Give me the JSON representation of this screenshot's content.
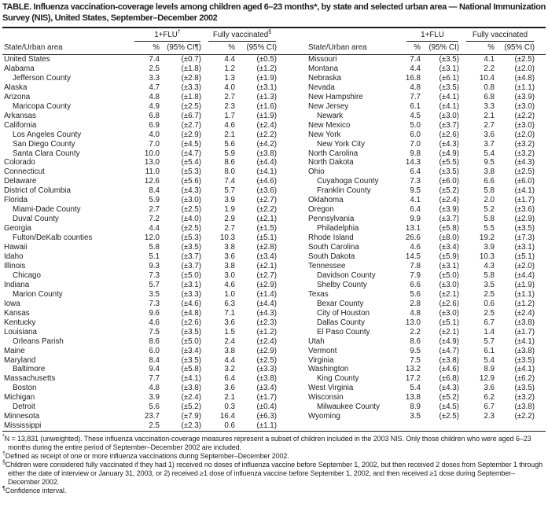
{
  "title": "TABLE. Influenza vaccination-coverage levels among children aged 6–23 months*, by state and selected urban area — National Immunization Survey (NIS), United States, September–December 2002",
  "header": {
    "state_col": "State/Urban area",
    "left_flu_label": "1+FLU",
    "left_flu_marker": "†",
    "left_fv_label": "Fully vaccinated",
    "left_fv_marker": "§",
    "right_flu_label": "1+FLU",
    "right_fv_label": "Fully vaccinated",
    "pct_label": "%",
    "ci_label_marked": "(95% CI¶)",
    "ci_label": "(95% CI)"
  },
  "rows_left": [
    {
      "name": "United States",
      "indent": false,
      "flu": "7.4",
      "flu_ci": "(±0.7)",
      "fv": "4.4",
      "fv_ci": "(±0.5)"
    },
    {
      "name": "Alabama",
      "indent": false,
      "flu": "2.5",
      "flu_ci": "(±1.8)",
      "fv": "1.2",
      "fv_ci": "(±1.2)"
    },
    {
      "name": "Jefferson County",
      "indent": true,
      "flu": "3.3",
      "flu_ci": "(±2.8)",
      "fv": "1.3",
      "fv_ci": "(±1.9)"
    },
    {
      "name": "Alaska",
      "indent": false,
      "flu": "4.7",
      "flu_ci": "(±3.3)",
      "fv": "4.0",
      "fv_ci": "(±3.1)"
    },
    {
      "name": "Arizona",
      "indent": false,
      "flu": "4.8",
      "flu_ci": "(±1.8)",
      "fv": "2.7",
      "fv_ci": "(±1.3)"
    },
    {
      "name": "Maricopa County",
      "indent": true,
      "flu": "4.9",
      "flu_ci": "(±2.5)",
      "fv": "2.3",
      "fv_ci": "(±1.6)"
    },
    {
      "name": "Arkansas",
      "indent": false,
      "flu": "6.8",
      "flu_ci": "(±6.7)",
      "fv": "1.7",
      "fv_ci": "(±1.9)"
    },
    {
      "name": "California",
      "indent": false,
      "flu": "6.9",
      "flu_ci": "(±2.7)",
      "fv": "4.6",
      "fv_ci": "(±2.4)"
    },
    {
      "name": "Los Angeles County",
      "indent": true,
      "flu": "4.0",
      "flu_ci": "(±2.9)",
      "fv": "2.1",
      "fv_ci": "(±2.2)"
    },
    {
      "name": "San Diego County",
      "indent": true,
      "flu": "7.0",
      "flu_ci": "(±4.5)",
      "fv": "5.6",
      "fv_ci": "(±4.2)"
    },
    {
      "name": "Santa Clara County",
      "indent": true,
      "flu": "10.0",
      "flu_ci": "(±4.7)",
      "fv": "5.9",
      "fv_ci": "(±3.8)"
    },
    {
      "name": "Colorado",
      "indent": false,
      "flu": "13.0",
      "flu_ci": "(±5.4)",
      "fv": "8.6",
      "fv_ci": "(±4.4)"
    },
    {
      "name": "Connecticut",
      "indent": false,
      "flu": "11.0",
      "flu_ci": "(±5.3)",
      "fv": "8.0",
      "fv_ci": "(±4.1)"
    },
    {
      "name": "Delaware",
      "indent": false,
      "flu": "12.6",
      "flu_ci": "(±5.6)",
      "fv": "7.4",
      "fv_ci": "(±4.6)"
    },
    {
      "name": "District of Columbia",
      "indent": false,
      "flu": "8.4",
      "flu_ci": "(±4.3)",
      "fv": "5.7",
      "fv_ci": "(±3.6)"
    },
    {
      "name": "Florida",
      "indent": false,
      "flu": "5.9",
      "flu_ci": "(±3.0)",
      "fv": "3.9",
      "fv_ci": "(±2.7)"
    },
    {
      "name": "Miami-Dade County",
      "indent": true,
      "flu": "2.7",
      "flu_ci": "(±2.5)",
      "fv": "1.9",
      "fv_ci": "(±2.2)"
    },
    {
      "name": "Duval County",
      "indent": true,
      "flu": "7.2",
      "flu_ci": "(±4.0)",
      "fv": "2.9",
      "fv_ci": "(±2.1)"
    },
    {
      "name": "Georgia",
      "indent": false,
      "flu": "4.4",
      "flu_ci": "(±2.5)",
      "fv": "2.7",
      "fv_ci": "(±1.5)"
    },
    {
      "name": "Fulton/DeKalb counties",
      "indent": true,
      "flu": "12.0",
      "flu_ci": "(±5.3)",
      "fv": "10.3",
      "fv_ci": "(±5.1)"
    },
    {
      "name": "Hawaii",
      "indent": false,
      "flu": "5.8",
      "flu_ci": "(±3.5)",
      "fv": "3.8",
      "fv_ci": "(±2.8)"
    },
    {
      "name": "Idaho",
      "indent": false,
      "flu": "5.1",
      "flu_ci": "(±3.7)",
      "fv": "3.6",
      "fv_ci": "(±3.4)"
    },
    {
      "name": "Illinois",
      "indent": false,
      "flu": "9.3",
      "flu_ci": "(±3.7)",
      "fv": "3.8",
      "fv_ci": "(±2.1)"
    },
    {
      "name": "Chicago",
      "indent": true,
      "flu": "7.3",
      "flu_ci": "(±5.0)",
      "fv": "3.0",
      "fv_ci": "(±2.7)"
    },
    {
      "name": "Indiana",
      "indent": false,
      "flu": "5.7",
      "flu_ci": "(±3.1)",
      "fv": "4.6",
      "fv_ci": "(±2.9)"
    },
    {
      "name": "Marion County",
      "indent": true,
      "flu": "3.5",
      "flu_ci": "(±3.3)",
      "fv": "1.0",
      "fv_ci": "(±1.4)"
    },
    {
      "name": "Iowa",
      "indent": false,
      "flu": "7.3",
      "flu_ci": "(±4.6)",
      "fv": "6.3",
      "fv_ci": "(±4.4)"
    },
    {
      "name": "Kansas",
      "indent": false,
      "flu": "9.6",
      "flu_ci": "(±4.8)",
      "fv": "7.1",
      "fv_ci": "(±4.3)"
    },
    {
      "name": "Kentucky",
      "indent": false,
      "flu": "4.6",
      "flu_ci": "(±2.6)",
      "fv": "3.6",
      "fv_ci": "(±2.3)"
    },
    {
      "name": "Louisiana",
      "indent": false,
      "flu": "7.5",
      "flu_ci": "(±3.5)",
      "fv": "1.5",
      "fv_ci": "(±1.2)"
    },
    {
      "name": "Orleans Parish",
      "indent": true,
      "flu": "8.6",
      "flu_ci": "(±5.0)",
      "fv": "2.4",
      "fv_ci": "(±2.4)"
    },
    {
      "name": "Maine",
      "indent": false,
      "flu": "6.0",
      "flu_ci": "(±3.4)",
      "fv": "3.8",
      "fv_ci": "(±2.9)"
    },
    {
      "name": "Maryland",
      "indent": false,
      "flu": "8.4",
      "flu_ci": "(±3.5)",
      "fv": "4.4",
      "fv_ci": "(±2.5)"
    },
    {
      "name": "Baltimore",
      "indent": true,
      "flu": "9.4",
      "flu_ci": "(±5.8)",
      "fv": "3.2",
      "fv_ci": "(±3.3)"
    },
    {
      "name": "Massachusetts",
      "indent": false,
      "flu": "7.7",
      "flu_ci": "(±4.1)",
      "fv": "6.4",
      "fv_ci": "(±3.8)"
    },
    {
      "name": "Boston",
      "indent": true,
      "flu": "4.8",
      "flu_ci": "(±3.8)",
      "fv": "3.6",
      "fv_ci": "(±3.4)"
    },
    {
      "name": "Michigan",
      "indent": false,
      "flu": "3.9",
      "flu_ci": "(±2.4)",
      "fv": "2.1",
      "fv_ci": "(±1.7)"
    },
    {
      "name": "Detroit",
      "indent": true,
      "flu": "5.6",
      "flu_ci": "(±5.2)",
      "fv": "0.3",
      "fv_ci": "(±0.4)"
    },
    {
      "name": "Minnesota",
      "indent": false,
      "flu": "23.7",
      "flu_ci": "(±7.9)",
      "fv": "16.4",
      "fv_ci": "(±6.3)"
    },
    {
      "name": "Mississippi",
      "indent": false,
      "flu": "2.5",
      "flu_ci": "(±2.3)",
      "fv": "0.6",
      "fv_ci": "(±1.1)"
    }
  ],
  "rows_right": [
    {
      "name": "Missouri",
      "indent": false,
      "flu": "7.4",
      "flu_ci": "(±3.5)",
      "fv": "4.1",
      "fv_ci": "(±2.5)"
    },
    {
      "name": "Montana",
      "indent": false,
      "flu": "4.4",
      "flu_ci": "(±3.1)",
      "fv": "2.2",
      "fv_ci": "(±2.0)"
    },
    {
      "name": "Nebraska",
      "indent": false,
      "flu": "16.8",
      "flu_ci": "(±6.1)",
      "fv": "10.4",
      "fv_ci": "(±4.8)"
    },
    {
      "name": "Nevada",
      "indent": false,
      "flu": "4.8",
      "flu_ci": "(±3.5)",
      "fv": "0.8",
      "fv_ci": "(±1.1)"
    },
    {
      "name": "New Hampshire",
      "indent": false,
      "flu": "7.7",
      "flu_ci": "(±4.1)",
      "fv": "6.8",
      "fv_ci": "(±3.9)"
    },
    {
      "name": "New Jersey",
      "indent": false,
      "flu": "6.1",
      "flu_ci": "(±4.1)",
      "fv": "3.3",
      "fv_ci": "(±3.0)"
    },
    {
      "name": "Newark",
      "indent": true,
      "flu": "4.5",
      "flu_ci": "(±3.0)",
      "fv": "2.1",
      "fv_ci": "(±2.2)"
    },
    {
      "name": "New Mexico",
      "indent": false,
      "flu": "5.0",
      "flu_ci": "(±3.7)",
      "fv": "2.7",
      "fv_ci": "(±3.0)"
    },
    {
      "name": "New York",
      "indent": false,
      "flu": "6.0",
      "flu_ci": "(±2.6)",
      "fv": "3.6",
      "fv_ci": "(±2.0)"
    },
    {
      "name": "New York City",
      "indent": true,
      "flu": "7.0",
      "flu_ci": "(±4.3)",
      "fv": "3.7",
      "fv_ci": "(±3.2)"
    },
    {
      "name": "North Carolina",
      "indent": false,
      "flu": "9.8",
      "flu_ci": "(±4.9)",
      "fv": "5.4",
      "fv_ci": "(±3.2)"
    },
    {
      "name": "North Dakota",
      "indent": false,
      "flu": "14.3",
      "flu_ci": "(±5.5)",
      "fv": "9.5",
      "fv_ci": "(±4.3)"
    },
    {
      "name": "Ohio",
      "indent": false,
      "flu": "6.4",
      "flu_ci": "(±3.5)",
      "fv": "3.8",
      "fv_ci": "(±2.5)"
    },
    {
      "name": "Cuyahoga County",
      "indent": true,
      "flu": "7.3",
      "flu_ci": "(±6.0)",
      "fv": "6.6",
      "fv_ci": "(±6.0)"
    },
    {
      "name": "Franklin County",
      "indent": true,
      "flu": "9.5",
      "flu_ci": "(±5.2)",
      "fv": "5.8",
      "fv_ci": "(±4.1)"
    },
    {
      "name": "Oklahoma",
      "indent": false,
      "flu": "4.1",
      "flu_ci": "(±2.4)",
      "fv": "2.0",
      "fv_ci": "(±1.7)"
    },
    {
      "name": "Oregon",
      "indent": false,
      "flu": "6.4",
      "flu_ci": "(±3.9)",
      "fv": "5.2",
      "fv_ci": "(±3.6)"
    },
    {
      "name": "Pennsylvania",
      "indent": false,
      "flu": "9.9",
      "flu_ci": "(±3.7)",
      "fv": "5.8",
      "fv_ci": "(±2.9)"
    },
    {
      "name": "Philadelphia",
      "indent": true,
      "flu": "13.1",
      "flu_ci": "(±5.8)",
      "fv": "5.5",
      "fv_ci": "(±3.5)"
    },
    {
      "name": "Rhode Island",
      "indent": false,
      "flu": "26.6",
      "flu_ci": "(±8.0)",
      "fv": "19.2",
      "fv_ci": "(±7.3)"
    },
    {
      "name": "South Carolina",
      "indent": false,
      "flu": "4.6",
      "flu_ci": "(±3.4)",
      "fv": "3.9",
      "fv_ci": "(±3.1)"
    },
    {
      "name": "South Dakota",
      "indent": false,
      "flu": "14.5",
      "flu_ci": "(±5.9)",
      "fv": "10.3",
      "fv_ci": "(±5.1)"
    },
    {
      "name": "Tennessee",
      "indent": false,
      "flu": "7.8",
      "flu_ci": "(±3.1)",
      "fv": "4.3",
      "fv_ci": "(±2.0)"
    },
    {
      "name": "Davidson County",
      "indent": true,
      "flu": "7.9",
      "flu_ci": "(±5.0)",
      "fv": "5.8",
      "fv_ci": "(±4.4)"
    },
    {
      "name": "Shelby County",
      "indent": true,
      "flu": "6.6",
      "flu_ci": "(±3.0)",
      "fv": "3.5",
      "fv_ci": "(±1.9)"
    },
    {
      "name": "Texas",
      "indent": false,
      "flu": "5.6",
      "flu_ci": "(±2.1)",
      "fv": "2.5",
      "fv_ci": "(±1.1)"
    },
    {
      "name": "Bexar County",
      "indent": true,
      "flu": "2.8",
      "flu_ci": "(±2.6)",
      "fv": "0.6",
      "fv_ci": "(±1.2)"
    },
    {
      "name": "City of Houston",
      "indent": true,
      "flu": "4.8",
      "flu_ci": "(±3.0)",
      "fv": "2.5",
      "fv_ci": "(±2.4)"
    },
    {
      "name": "Dallas County",
      "indent": true,
      "flu": "13.0",
      "flu_ci": "(±5.1)",
      "fv": "6.7",
      "fv_ci": "(±3.8)"
    },
    {
      "name": "El Paso County",
      "indent": true,
      "flu": "2.2",
      "flu_ci": "(±2.1)",
      "fv": "1.4",
      "fv_ci": "(±1.7)"
    },
    {
      "name": "Utah",
      "indent": false,
      "flu": "8.6",
      "flu_ci": "(±4.9)",
      "fv": "5.7",
      "fv_ci": "(±4.1)"
    },
    {
      "name": "Vermont",
      "indent": false,
      "flu": "9.5",
      "flu_ci": "(±4.7)",
      "fv": "6.1",
      "fv_ci": "(±3.8)"
    },
    {
      "name": "Virginia",
      "indent": false,
      "flu": "7.5",
      "flu_ci": "(±3.8)",
      "fv": "5.4",
      "fv_ci": "(±3.5)"
    },
    {
      "name": "Washington",
      "indent": false,
      "flu": "13.2",
      "flu_ci": "(±4.6)",
      "fv": "8.9",
      "fv_ci": "(±4.1)"
    },
    {
      "name": "King County",
      "indent": true,
      "flu": "17.2",
      "flu_ci": "(±6.8)",
      "fv": "12.9",
      "fv_ci": "(±6.2)"
    },
    {
      "name": "West Virginia",
      "indent": false,
      "flu": "5.4",
      "flu_ci": "(±4.3)",
      "fv": "3.6",
      "fv_ci": "(±3.5)"
    },
    {
      "name": "Wisconsin",
      "indent": false,
      "flu": "13.8",
      "flu_ci": "(±5.2)",
      "fv": "6.2",
      "fv_ci": "(±3.2)"
    },
    {
      "name": "Milwaukee County",
      "indent": true,
      "flu": "8.9",
      "flu_ci": "(±4.5)",
      "fv": "6.7",
      "fv_ci": "(±3.8)"
    },
    {
      "name": "Wyoming",
      "indent": false,
      "flu": "3.5",
      "flu_ci": "(±2.5)",
      "fv": "2.3",
      "fv_ci": "(±2.2)"
    }
  ],
  "footnotes": [
    {
      "marker": "*",
      "text": "N = 13,831 (unweighted). These influenza vaccination-coverage measures represent a subset of children included in the 2003 NIS. Only those children who were aged 6–23 months during the entire period of September–December 2002 are included."
    },
    {
      "marker": "†",
      "text": "Defined as receipt of one or more influenza vaccinations during September–December 2002."
    },
    {
      "marker": "§",
      "text": "Children were considered fully vaccinated if they had 1) received no doses of influenza vaccine before September 1, 2002, but then received 2 doses from September 1 through either the date of interview or January 31, 2003, or 2) received ≥1 dose of influenza vaccine before September 1, 2002, and then received ≥1 dose during September–December 2002."
    },
    {
      "marker": "¶",
      "text": "Confidence interval."
    }
  ]
}
